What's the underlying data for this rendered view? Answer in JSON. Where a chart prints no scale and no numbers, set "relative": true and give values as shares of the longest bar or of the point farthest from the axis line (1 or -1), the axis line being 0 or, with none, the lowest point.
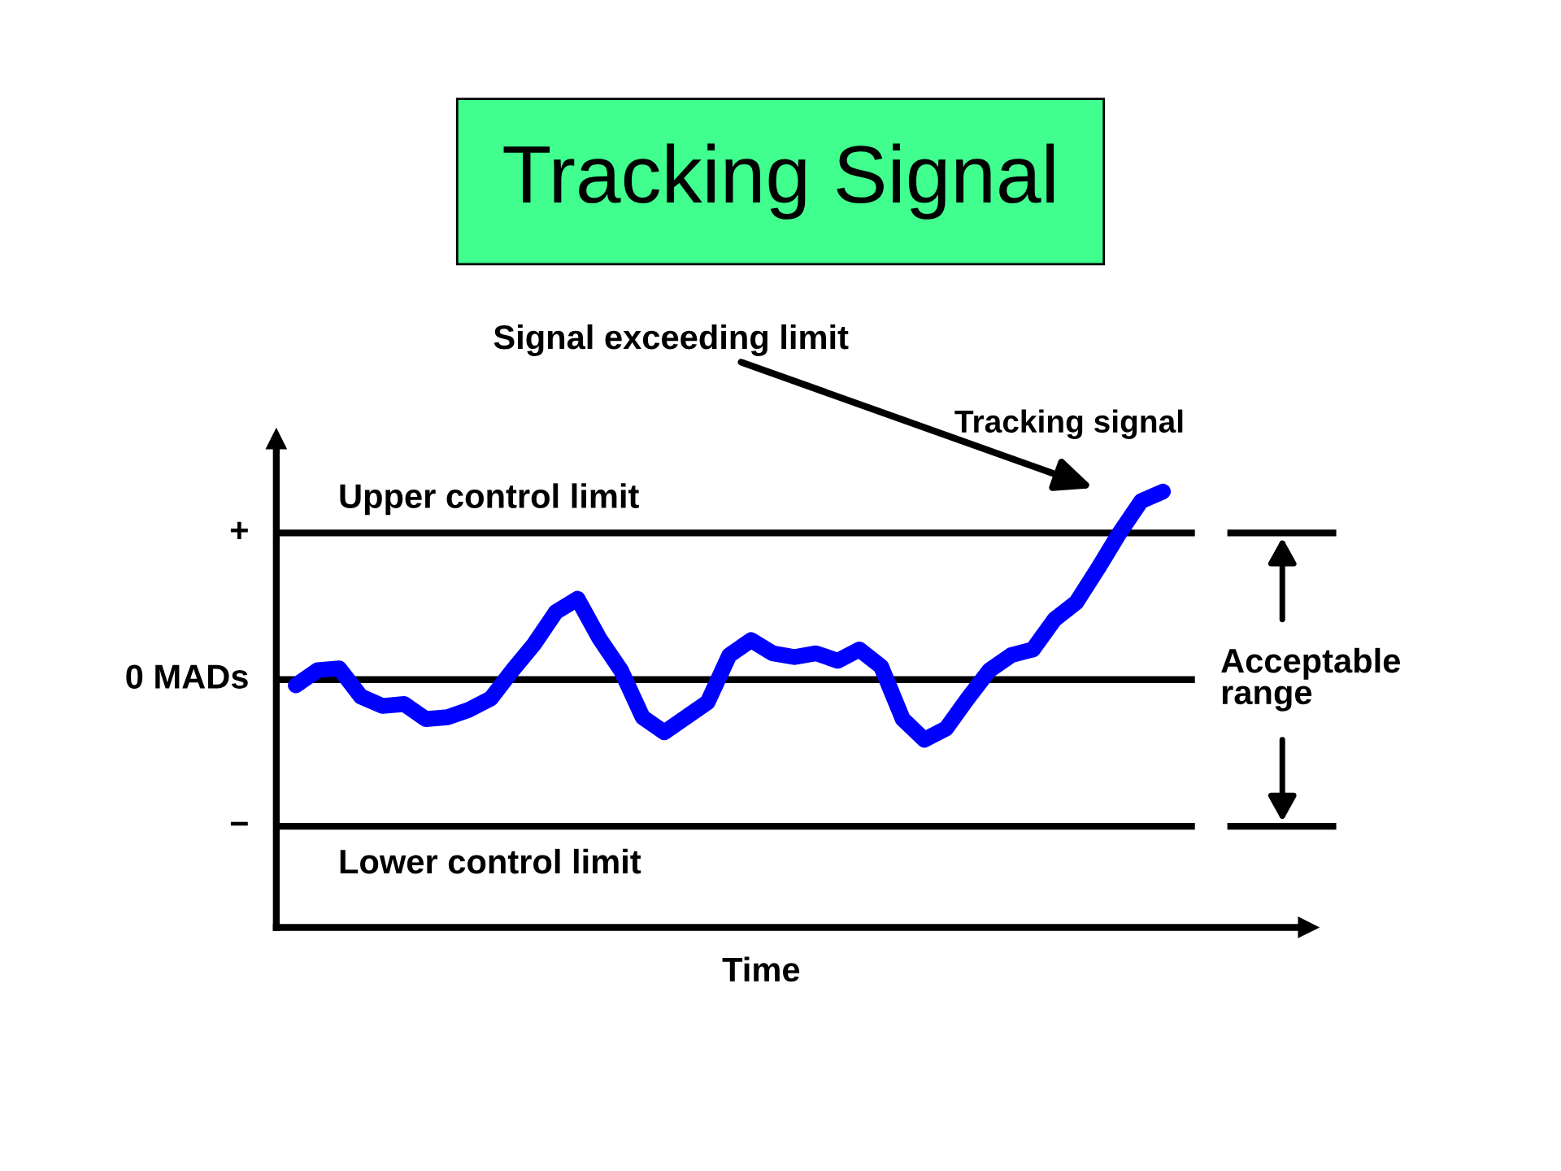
{
  "chart_data": {
    "type": "line",
    "title": "Tracking Signal",
    "relative": true,
    "categories": [
      null,
      null,
      null,
      null,
      null,
      null,
      null,
      null,
      null,
      null,
      null,
      null,
      null,
      null,
      null,
      null,
      null,
      null,
      null,
      null,
      null,
      null,
      null,
      null,
      null,
      null,
      null,
      null,
      null,
      null,
      null,
      null,
      null,
      null,
      null,
      null,
      null,
      null,
      null,
      null,
      null
    ],
    "series": [
      {
        "color": "#0000ff",
        "values": [
          -0.03,
          0.05,
          0.06,
          -0.09,
          -0.14,
          -0.13,
          -0.21,
          -0.2,
          -0.16,
          -0.1,
          0.05,
          0.19,
          0.36,
          0.43,
          0.22,
          0.05,
          -0.2,
          -0.28,
          -0.2,
          -0.12,
          0.13,
          0.21,
          0.14,
          0.12,
          0.14,
          0.1,
          0.16,
          0.07,
          -0.21,
          -0.32,
          -0.26,
          -0.1,
          0.05,
          0.13,
          0.16,
          0.32,
          0.41,
          0.59,
          0.78,
          0.95,
          1
        ]
      }
    ],
    "ref_lines": [
      {
        "axis": "y",
        "value": 0.78,
        "label": "Upper control limit",
        "color": "#000000"
      },
      {
        "axis": "y",
        "value": 0,
        "label": null,
        "color": "#000000"
      },
      {
        "axis": "y",
        "value": -0.78,
        "label": "Lower control limit",
        "color": "#000000"
      }
    ],
    "annotations": [
      "Signal exceeding limit",
      "Acceptable range",
      "+",
      "0 MADs",
      "−",
      "Tracking signal",
      "Time"
    ],
    "grid": false,
    "legend": false,
    "marker": "none",
    "line_style": "solid"
  }
}
